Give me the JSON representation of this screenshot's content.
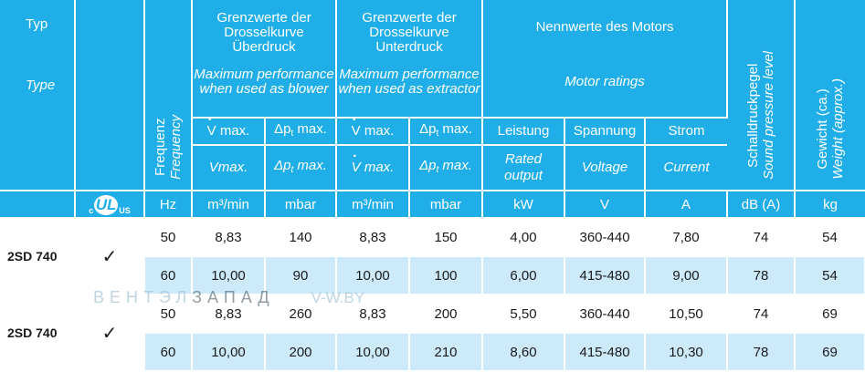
{
  "header": {
    "typ_de": "Typ",
    "typ_en": "Type",
    "freq_de": "Frequenz",
    "freq_en": "Frequency",
    "overpressure_de": "Grenzwerte der Drosselkurve Überdruck",
    "overpressure_en": "Maximum performance when used as blower",
    "underpressure_de": "Grenzwerte der Drosselkurve Unterdruck",
    "underpressure_en": "Maximum performance when used as extractor",
    "motor_de": "Nennwerte des Motors",
    "motor_en": "Motor ratings",
    "sound_de": "Schalldruckpegel",
    "sound_en": "Sound pressure level",
    "weight_de": "Gewicht (ca.)",
    "weight_en": "Weight (approx.)",
    "vmax_de": "V max.",
    "vmax_en": "Vmax.",
    "vmax_en2": "V max.",
    "dp_de": "Δp",
    "dp_sub": "t",
    "dp_suffix": " max.",
    "power_de": "Leistung",
    "power_en": "Rated output",
    "voltage_de": "Spannung",
    "voltage_en": "Voltage",
    "current_de": "Strom",
    "current_en": "Current",
    "cert_logo": {
      "c": "c",
      "ul": "UL",
      "us": "US"
    }
  },
  "units": [
    "Hz",
    "m³/min",
    "mbar",
    "m³/min",
    "mbar",
    "kW",
    "V",
    "A",
    "dB (A)",
    "kg"
  ],
  "rows": [
    {
      "name": "2SD 740",
      "check": "✓",
      "lines": [
        [
          "50",
          "8,83",
          "140",
          "8,83",
          "150",
          "4,00",
          "360-440",
          "7,80",
          "74",
          "54"
        ],
        [
          "60",
          "10,00",
          "90",
          "10,00",
          "100",
          "6,00",
          "415-480",
          "9,00",
          "78",
          "54"
        ]
      ]
    },
    {
      "name": "2SD 740",
      "check": "✓",
      "lines": [
        [
          "50",
          "8,83",
          "260",
          "8,83",
          "200",
          "5,50",
          "360-440",
          "10,50",
          "74",
          "69"
        ],
        [
          "60",
          "10,00",
          "200",
          "10,00",
          "210",
          "8,60",
          "415-480",
          "10,30",
          "78",
          "69"
        ]
      ]
    }
  ],
  "watermark": {
    "a": "ВЕНТЭЛ",
    "b": "ЗАПАД",
    "site": "V-W.BY"
  }
}
